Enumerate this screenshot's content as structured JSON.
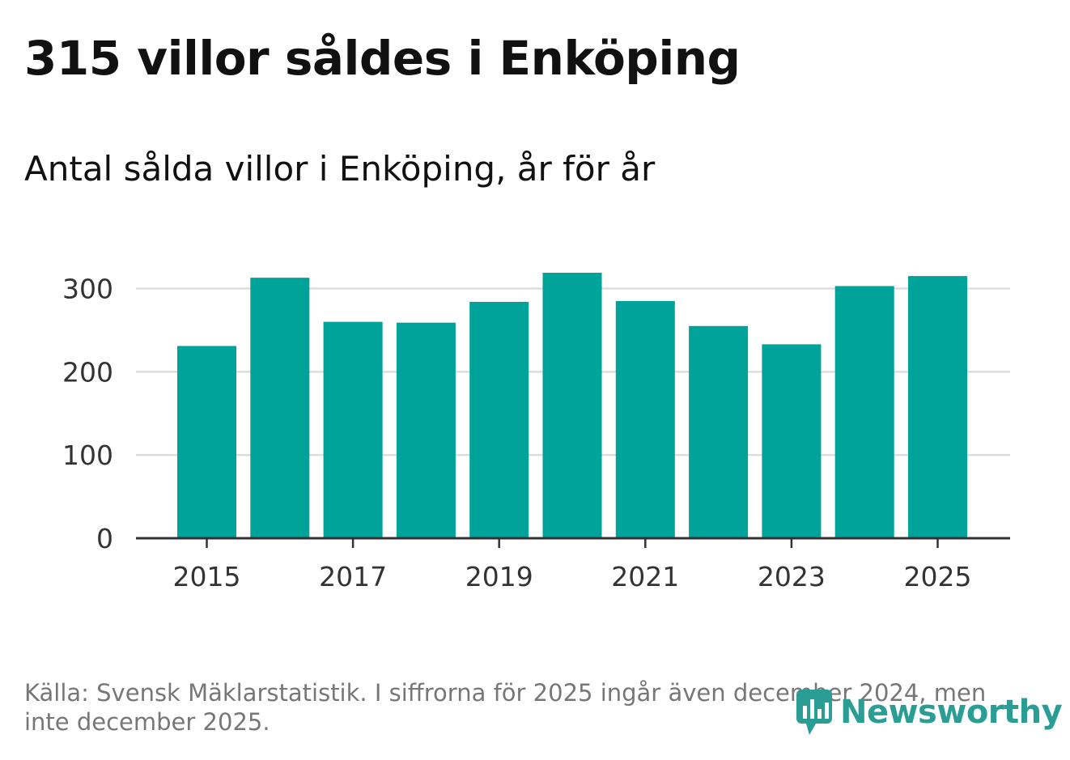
{
  "header": {
    "title": "315 villor såldes i Enköping",
    "subtitle": "Antal sålda villor i Enköping, år för år"
  },
  "footer": {
    "source": "Källa: Svensk Mäklarstatistik. I siffrorna för 2025 ingår även december 2024, men inte december 2025.",
    "brand": "Newsworthy"
  },
  "colors": {
    "bar": "#00a39a",
    "grid": "#dddddd",
    "axis": "#333333",
    "brand": "#2a9d95"
  },
  "chart_data": {
    "type": "bar",
    "title": "Antal sålda villor i Enköping, år för år",
    "xlabel": "",
    "ylabel": "",
    "categories": [
      "2015",
      "2016",
      "2017",
      "2018",
      "2019",
      "2020",
      "2021",
      "2022",
      "2023",
      "2024",
      "2025"
    ],
    "values": [
      231,
      313,
      260,
      259,
      284,
      319,
      285,
      255,
      233,
      303,
      315
    ],
    "ylim": [
      0,
      320
    ],
    "yticks": [
      0,
      100,
      200,
      300
    ],
    "xtick_labels": [
      "2015",
      "2017",
      "2019",
      "2021",
      "2023",
      "2025"
    ],
    "grid": true
  }
}
